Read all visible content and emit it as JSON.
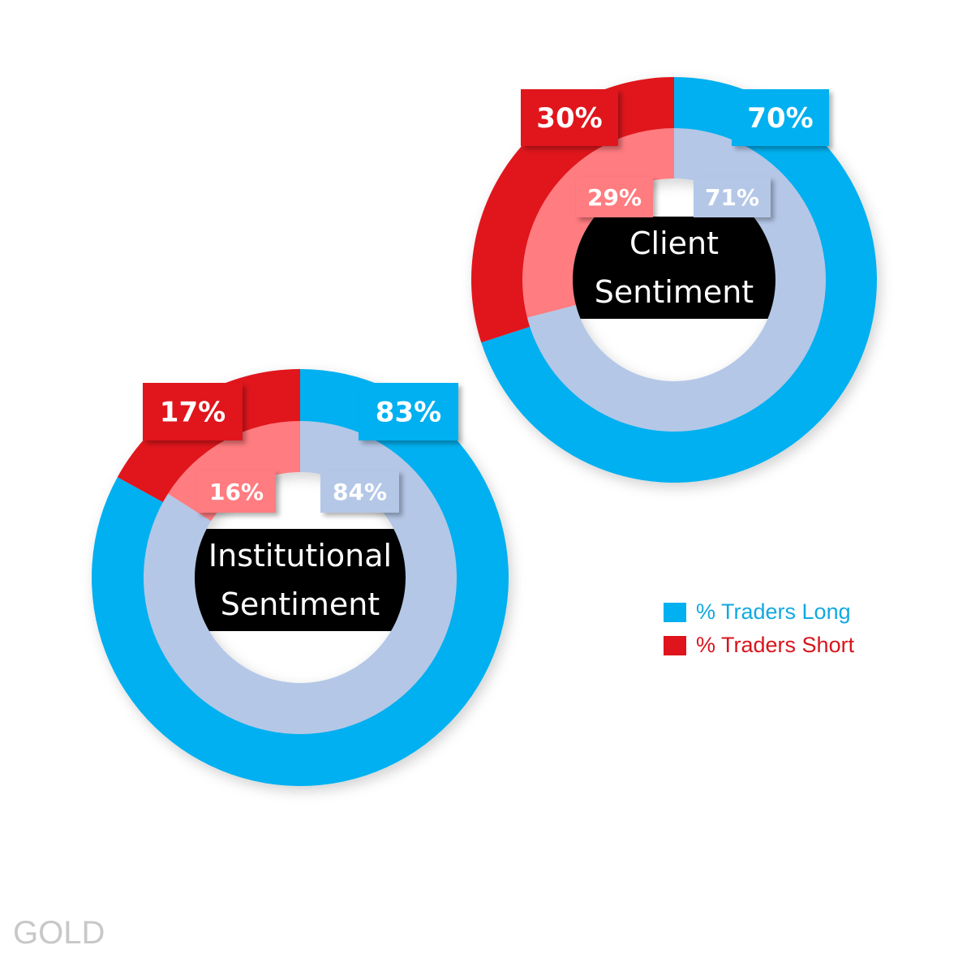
{
  "colors": {
    "long": "#00b0f0",
    "short": "#e0141c",
    "long_inner": "#b4c7e7",
    "short_inner": "#ff7c80",
    "center": "#000000"
  },
  "chart_data": [
    {
      "type": "pie",
      "variant": "double-donut",
      "title": "Client Sentiment",
      "title_lines": [
        "Client",
        "Sentiment"
      ],
      "outer": {
        "categories": [
          "% Traders Long",
          "% Traders Short"
        ],
        "values": [
          70,
          30
        ],
        "labels": [
          "70%",
          "30%"
        ]
      },
      "inner": {
        "categories": [
          "% Traders Long",
          "% Traders Short"
        ],
        "values": [
          71,
          29
        ],
        "labels": [
          "71%",
          "29%"
        ]
      }
    },
    {
      "type": "pie",
      "variant": "double-donut",
      "title": "Institutional Sentiment",
      "title_lines": [
        "Institutional",
        "Sentiment"
      ],
      "outer": {
        "categories": [
          "% Traders Long",
          "% Traders Short"
        ],
        "values": [
          83,
          17
        ],
        "labels": [
          "83%",
          "17%"
        ]
      },
      "inner": {
        "categories": [
          "% Traders Long",
          "% Traders Short"
        ],
        "values": [
          84,
          16
        ],
        "labels": [
          "84%",
          "16%"
        ]
      }
    }
  ],
  "legend": {
    "position": "right",
    "items": [
      {
        "label": "% Traders Long",
        "color": "#00b0f0"
      },
      {
        "label": "% Traders Short",
        "color": "#e0141c"
      }
    ]
  },
  "footer": "GOLD"
}
